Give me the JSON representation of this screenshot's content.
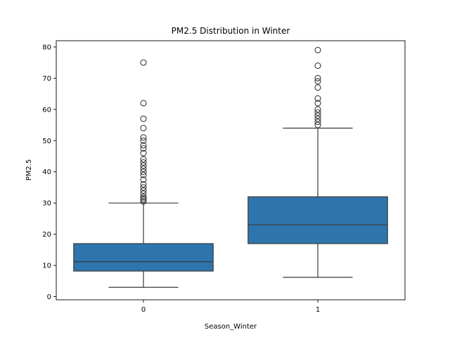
{
  "chart_data": {
    "type": "box",
    "title": "PM2.5 Distribution in Winter",
    "xlabel": "Season_Winter",
    "ylabel": "PM2.5",
    "ylim": [
      -1,
      82
    ],
    "yticks": [
      0,
      10,
      20,
      30,
      40,
      50,
      60,
      70,
      80
    ],
    "categories": [
      "0",
      "1"
    ],
    "grid": false,
    "box_color": "#2e75ad",
    "line_color": "#3a3a3a",
    "boxes": [
      {
        "category": "0",
        "whisker_low": 3,
        "q1": 8.2,
        "median": 11.2,
        "q3": 17,
        "whisker_high": 30,
        "outliers": [
          30.5,
          31,
          31.5,
          32,
          33,
          34,
          35,
          36,
          37.5,
          39,
          40,
          41,
          42,
          43,
          44,
          46,
          47.5,
          48.5,
          50,
          51,
          54,
          57,
          62,
          75
        ]
      },
      {
        "category": "1",
        "whisker_low": 6.2,
        "q1": 17,
        "median": 23,
        "q3": 32,
        "whisker_high": 54,
        "outliers": [
          55,
          56,
          57,
          58,
          59,
          60,
          62,
          63.5,
          67,
          69,
          70,
          74,
          79
        ]
      }
    ]
  }
}
